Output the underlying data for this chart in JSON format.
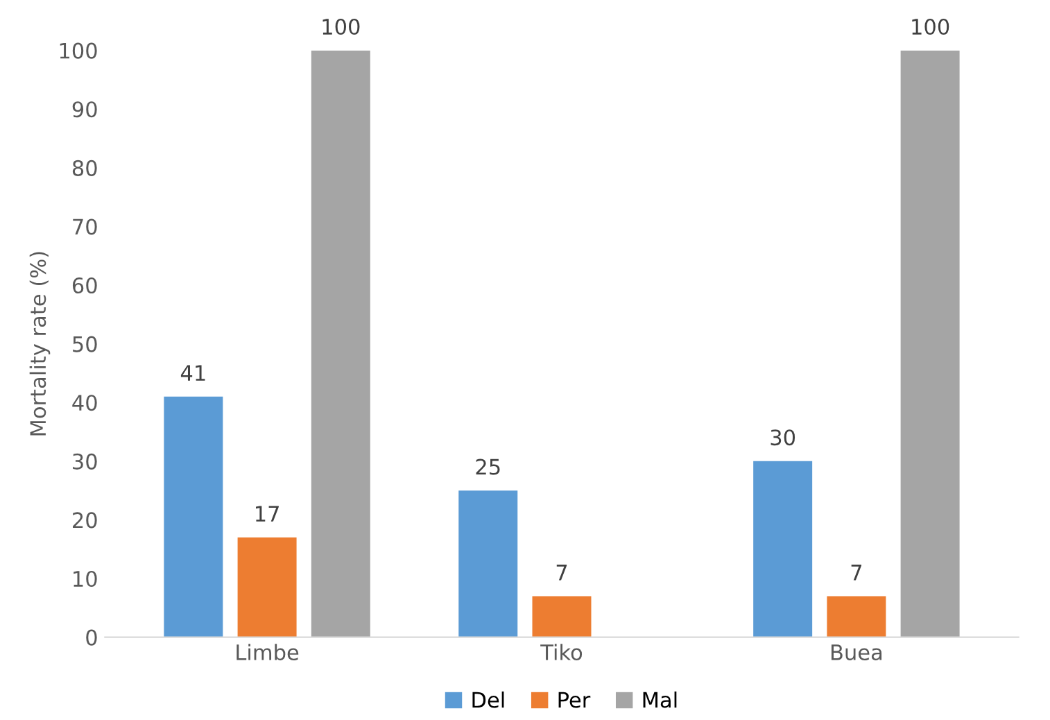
{
  "chart_data": {
    "type": "bar",
    "ylabel": "Mortality rate (%)",
    "categories": [
      "Limbe",
      "Tiko",
      "Buea"
    ],
    "series": [
      {
        "name": "Del",
        "color": "#5b9bd5",
        "values": [
          41,
          25,
          30
        ]
      },
      {
        "name": "Per",
        "color": "#ed7d31",
        "values": [
          17,
          7,
          7
        ]
      },
      {
        "name": "Mal",
        "color": "#a5a5a5",
        "values": [
          100,
          null,
          100
        ]
      }
    ],
    "ylim": [
      0,
      100
    ],
    "yticks": [
      0,
      10,
      20,
      30,
      40,
      50,
      60,
      70,
      80,
      90,
      100
    ],
    "data_labels": true,
    "legend": "bottom",
    "grid": false
  }
}
